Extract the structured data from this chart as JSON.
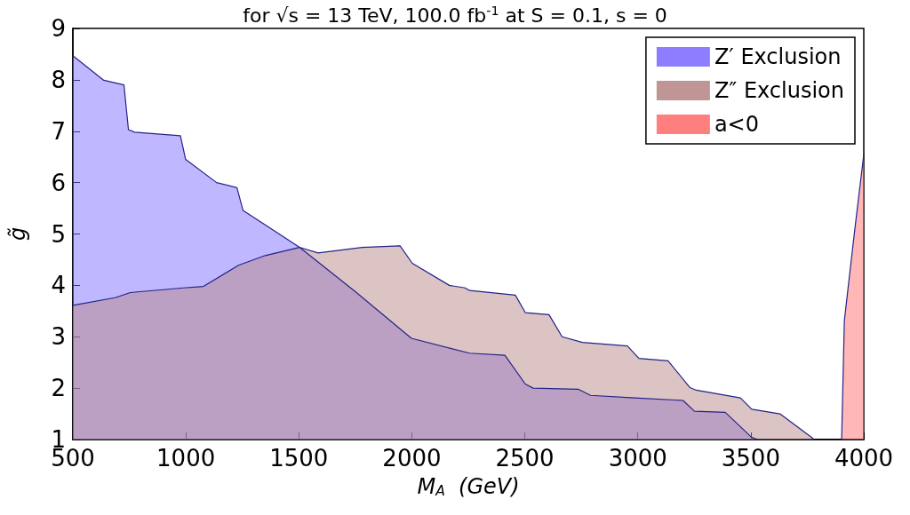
{
  "chart_data": {
    "type": "area",
    "title": "for √s = 13 TeV, 100.0 fb$^{-1}$ at S = 0.1, s = 0",
    "xlabel": "M$_{A}$  (GeV)",
    "ylabel": "g̃",
    "series": [
      {
        "name": "Z′ Exclusion",
        "color": "#8070ff",
        "x": [
          500,
          637,
          726,
          746,
          773,
          976,
          999,
          1136,
          1226,
          1253,
          1503,
          1749,
          1998,
          2256,
          2412,
          2502,
          2537,
          2736,
          2791,
          2986,
          3200,
          3251,
          3387,
          3504,
          3530
        ],
        "values": [
          8.47,
          7.99,
          7.9,
          7.03,
          6.98,
          6.91,
          6.45,
          6.0,
          5.9,
          5.46,
          4.74,
          3.88,
          2.97,
          2.68,
          2.64,
          2.08,
          2.0,
          1.98,
          1.86,
          1.81,
          1.76,
          1.55,
          1.53,
          1.04,
          1.0
        ]
      },
      {
        "name": "Z″ Exclusion",
        "color": "#b98a8a",
        "x": [
          500,
          687,
          754,
          988,
          1078,
          1233,
          1351,
          1503,
          1585,
          1780,
          1948,
          2002,
          2166,
          2236,
          2256,
          2458,
          2502,
          2607,
          2665,
          2755,
          2954,
          3005,
          3134,
          3231,
          3259,
          3454,
          3504,
          3629,
          3770,
          3780
        ],
        "values": [
          3.61,
          3.76,
          3.86,
          3.95,
          3.98,
          4.39,
          4.58,
          4.74,
          4.63,
          4.74,
          4.77,
          4.43,
          4.0,
          3.95,
          3.9,
          3.81,
          3.47,
          3.43,
          3.0,
          2.89,
          2.82,
          2.58,
          2.53,
          2.01,
          1.96,
          1.81,
          1.59,
          1.5,
          1.04,
          1.0
        ]
      },
      {
        "name": "a<0",
        "color": "#ff7070",
        "x": [
          3902,
          3914,
          3933,
          3960,
          4000
        ],
        "values": [
          1.0,
          3.31,
          4.05,
          5.08,
          6.55
        ]
      }
    ],
    "xlim": [
      500,
      4000
    ],
    "xticks": [
      500,
      1000,
      1500,
      2000,
      2500,
      3000,
      3500,
      4000
    ],
    "ylim": [
      1,
      9
    ],
    "yticks": [
      1,
      2,
      3,
      4,
      5,
      6,
      7,
      8,
      9
    ],
    "legend": "top right"
  }
}
